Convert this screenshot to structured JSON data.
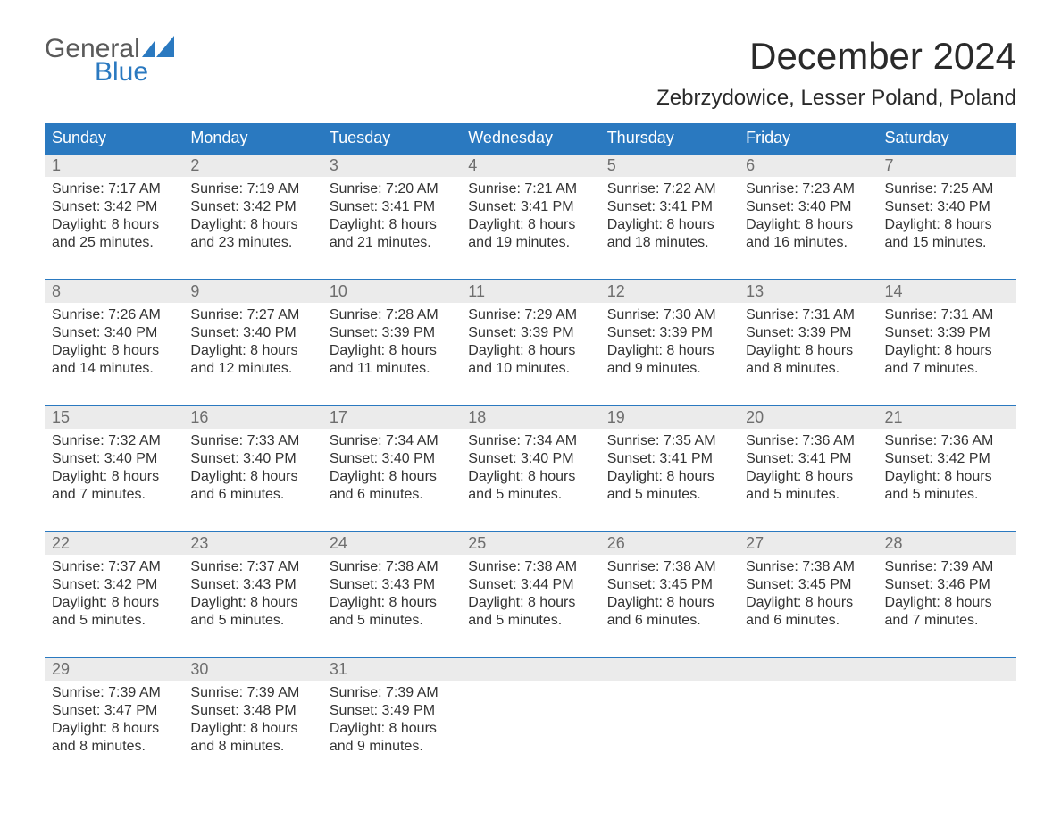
{
  "brand": {
    "top": "General",
    "bottom": "Blue",
    "accent_color": "#2a79c0"
  },
  "title": {
    "month_year": "December 2024",
    "location": "Zebrzydowice, Lesser Poland, Poland"
  },
  "day_headers": [
    "Sunday",
    "Monday",
    "Tuesday",
    "Wednesday",
    "Thursday",
    "Friday",
    "Saturday"
  ],
  "colors": {
    "header_bg": "#2a79c0",
    "header_text": "#ffffff",
    "daynum_bg": "#ebebeb",
    "daynum_text": "#6e6e6e",
    "body_text": "#333333",
    "rule": "#2a79c0",
    "page_bg": "#ffffff"
  },
  "typography": {
    "title_fontsize": 42,
    "location_fontsize": 24,
    "dow_fontsize": 18,
    "daynum_fontsize": 18,
    "body_fontsize": 16
  },
  "weeks": [
    [
      {
        "n": "1",
        "sunrise": "Sunrise: 7:17 AM",
        "sunset": "Sunset: 3:42 PM",
        "d1": "Daylight: 8 hours",
        "d2": "and 25 minutes."
      },
      {
        "n": "2",
        "sunrise": "Sunrise: 7:19 AM",
        "sunset": "Sunset: 3:42 PM",
        "d1": "Daylight: 8 hours",
        "d2": "and 23 minutes."
      },
      {
        "n": "3",
        "sunrise": "Sunrise: 7:20 AM",
        "sunset": "Sunset: 3:41 PM",
        "d1": "Daylight: 8 hours",
        "d2": "and 21 minutes."
      },
      {
        "n": "4",
        "sunrise": "Sunrise: 7:21 AM",
        "sunset": "Sunset: 3:41 PM",
        "d1": "Daylight: 8 hours",
        "d2": "and 19 minutes."
      },
      {
        "n": "5",
        "sunrise": "Sunrise: 7:22 AM",
        "sunset": "Sunset: 3:41 PM",
        "d1": "Daylight: 8 hours",
        "d2": "and 18 minutes."
      },
      {
        "n": "6",
        "sunrise": "Sunrise: 7:23 AM",
        "sunset": "Sunset: 3:40 PM",
        "d1": "Daylight: 8 hours",
        "d2": "and 16 minutes."
      },
      {
        "n": "7",
        "sunrise": "Sunrise: 7:25 AM",
        "sunset": "Sunset: 3:40 PM",
        "d1": "Daylight: 8 hours",
        "d2": "and 15 minutes."
      }
    ],
    [
      {
        "n": "8",
        "sunrise": "Sunrise: 7:26 AM",
        "sunset": "Sunset: 3:40 PM",
        "d1": "Daylight: 8 hours",
        "d2": "and 14 minutes."
      },
      {
        "n": "9",
        "sunrise": "Sunrise: 7:27 AM",
        "sunset": "Sunset: 3:40 PM",
        "d1": "Daylight: 8 hours",
        "d2": "and 12 minutes."
      },
      {
        "n": "10",
        "sunrise": "Sunrise: 7:28 AM",
        "sunset": "Sunset: 3:39 PM",
        "d1": "Daylight: 8 hours",
        "d2": "and 11 minutes."
      },
      {
        "n": "11",
        "sunrise": "Sunrise: 7:29 AM",
        "sunset": "Sunset: 3:39 PM",
        "d1": "Daylight: 8 hours",
        "d2": "and 10 minutes."
      },
      {
        "n": "12",
        "sunrise": "Sunrise: 7:30 AM",
        "sunset": "Sunset: 3:39 PM",
        "d1": "Daylight: 8 hours",
        "d2": "and 9 minutes."
      },
      {
        "n": "13",
        "sunrise": "Sunrise: 7:31 AM",
        "sunset": "Sunset: 3:39 PM",
        "d1": "Daylight: 8 hours",
        "d2": "and 8 minutes."
      },
      {
        "n": "14",
        "sunrise": "Sunrise: 7:31 AM",
        "sunset": "Sunset: 3:39 PM",
        "d1": "Daylight: 8 hours",
        "d2": "and 7 minutes."
      }
    ],
    [
      {
        "n": "15",
        "sunrise": "Sunrise: 7:32 AM",
        "sunset": "Sunset: 3:40 PM",
        "d1": "Daylight: 8 hours",
        "d2": "and 7 minutes."
      },
      {
        "n": "16",
        "sunrise": "Sunrise: 7:33 AM",
        "sunset": "Sunset: 3:40 PM",
        "d1": "Daylight: 8 hours",
        "d2": "and 6 minutes."
      },
      {
        "n": "17",
        "sunrise": "Sunrise: 7:34 AM",
        "sunset": "Sunset: 3:40 PM",
        "d1": "Daylight: 8 hours",
        "d2": "and 6 minutes."
      },
      {
        "n": "18",
        "sunrise": "Sunrise: 7:34 AM",
        "sunset": "Sunset: 3:40 PM",
        "d1": "Daylight: 8 hours",
        "d2": "and 5 minutes."
      },
      {
        "n": "19",
        "sunrise": "Sunrise: 7:35 AM",
        "sunset": "Sunset: 3:41 PM",
        "d1": "Daylight: 8 hours",
        "d2": "and 5 minutes."
      },
      {
        "n": "20",
        "sunrise": "Sunrise: 7:36 AM",
        "sunset": "Sunset: 3:41 PM",
        "d1": "Daylight: 8 hours",
        "d2": "and 5 minutes."
      },
      {
        "n": "21",
        "sunrise": "Sunrise: 7:36 AM",
        "sunset": "Sunset: 3:42 PM",
        "d1": "Daylight: 8 hours",
        "d2": "and 5 minutes."
      }
    ],
    [
      {
        "n": "22",
        "sunrise": "Sunrise: 7:37 AM",
        "sunset": "Sunset: 3:42 PM",
        "d1": "Daylight: 8 hours",
        "d2": "and 5 minutes."
      },
      {
        "n": "23",
        "sunrise": "Sunrise: 7:37 AM",
        "sunset": "Sunset: 3:43 PM",
        "d1": "Daylight: 8 hours",
        "d2": "and 5 minutes."
      },
      {
        "n": "24",
        "sunrise": "Sunrise: 7:38 AM",
        "sunset": "Sunset: 3:43 PM",
        "d1": "Daylight: 8 hours",
        "d2": "and 5 minutes."
      },
      {
        "n": "25",
        "sunrise": "Sunrise: 7:38 AM",
        "sunset": "Sunset: 3:44 PM",
        "d1": "Daylight: 8 hours",
        "d2": "and 5 minutes."
      },
      {
        "n": "26",
        "sunrise": "Sunrise: 7:38 AM",
        "sunset": "Sunset: 3:45 PM",
        "d1": "Daylight: 8 hours",
        "d2": "and 6 minutes."
      },
      {
        "n": "27",
        "sunrise": "Sunrise: 7:38 AM",
        "sunset": "Sunset: 3:45 PM",
        "d1": "Daylight: 8 hours",
        "d2": "and 6 minutes."
      },
      {
        "n": "28",
        "sunrise": "Sunrise: 7:39 AM",
        "sunset": "Sunset: 3:46 PM",
        "d1": "Daylight: 8 hours",
        "d2": "and 7 minutes."
      }
    ],
    [
      {
        "n": "29",
        "sunrise": "Sunrise: 7:39 AM",
        "sunset": "Sunset: 3:47 PM",
        "d1": "Daylight: 8 hours",
        "d2": "and 8 minutes."
      },
      {
        "n": "30",
        "sunrise": "Sunrise: 7:39 AM",
        "sunset": "Sunset: 3:48 PM",
        "d1": "Daylight: 8 hours",
        "d2": "and 8 minutes."
      },
      {
        "n": "31",
        "sunrise": "Sunrise: 7:39 AM",
        "sunset": "Sunset: 3:49 PM",
        "d1": "Daylight: 8 hours",
        "d2": "and 9 minutes."
      },
      {
        "n": "",
        "sunrise": "",
        "sunset": "",
        "d1": "",
        "d2": ""
      },
      {
        "n": "",
        "sunrise": "",
        "sunset": "",
        "d1": "",
        "d2": ""
      },
      {
        "n": "",
        "sunrise": "",
        "sunset": "",
        "d1": "",
        "d2": ""
      },
      {
        "n": "",
        "sunrise": "",
        "sunset": "",
        "d1": "",
        "d2": ""
      }
    ]
  ]
}
